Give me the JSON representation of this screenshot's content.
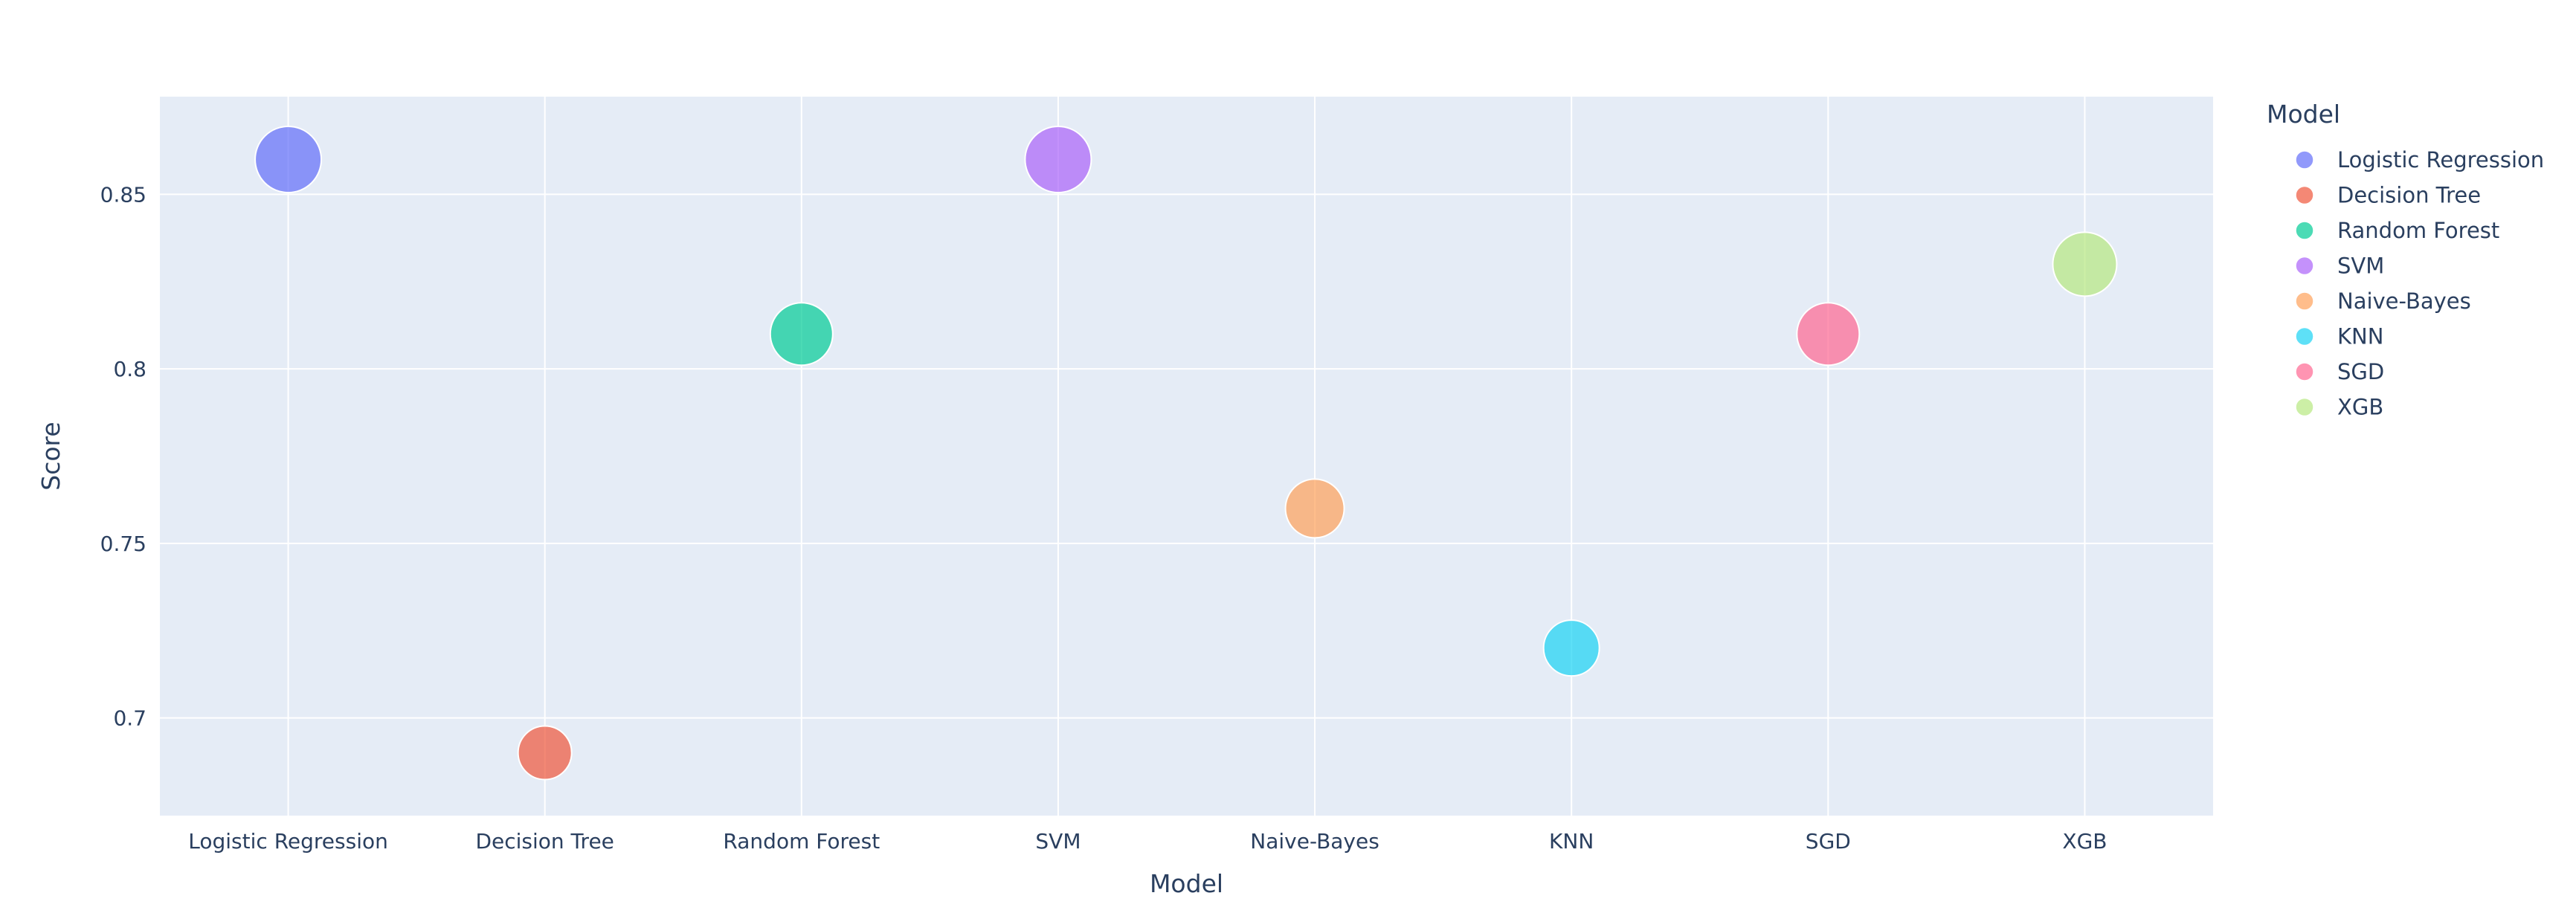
{
  "chart_data": {
    "type": "scatter",
    "title": "",
    "xlabel": "Model",
    "ylabel": "Score",
    "categories": [
      "Logistic Regression",
      "Decision Tree",
      "Random Forest",
      "SVM",
      "Naive-Bayes",
      "KNN",
      "SGD",
      "XGB"
    ],
    "ylim": [
      0.672,
      0.878
    ],
    "yticks": [
      0.7,
      0.75,
      0.8,
      0.85
    ],
    "ytick_labels": [
      "0.7",
      "0.75",
      "0.8",
      "0.85"
    ],
    "grid": true,
    "legend": {
      "title": "Model",
      "position": "right"
    },
    "series": [
      {
        "name": "Logistic Regression",
        "x": "Logistic Regression",
        "y": 0.86,
        "color": "#636efa"
      },
      {
        "name": "Decision Tree",
        "x": "Decision Tree",
        "y": 0.69,
        "color": "#EF553B"
      },
      {
        "name": "Random Forest",
        "x": "Random Forest",
        "y": 0.81,
        "color": "#00cc96"
      },
      {
        "name": "SVM",
        "x": "SVM",
        "y": 0.86,
        "color": "#ab63fa"
      },
      {
        "name": "Naive-Bayes",
        "x": "Naive-Bayes",
        "y": 0.76,
        "color": "#FFA15A"
      },
      {
        "name": "KNN",
        "x": "KNN",
        "y": 0.72,
        "color": "#19d3f3"
      },
      {
        "name": "SGD",
        "x": "SGD",
        "y": 0.81,
        "color": "#FF6692"
      },
      {
        "name": "XGB",
        "x": "XGB",
        "y": 0.83,
        "color": "#B6E880"
      }
    ],
    "plot_background": "#E5ECF6",
    "grid_color": "#ffffff"
  }
}
